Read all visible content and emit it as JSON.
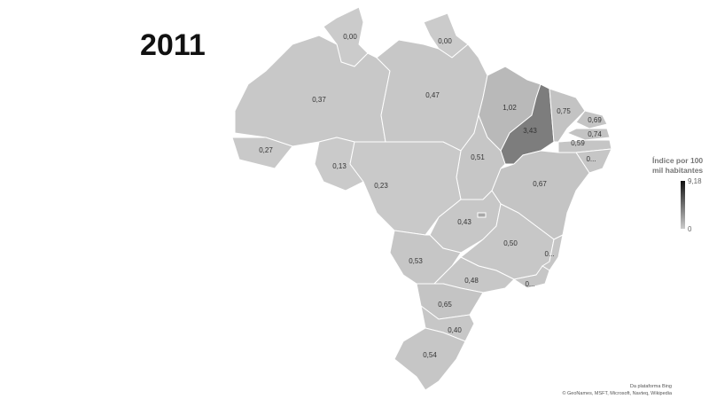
{
  "title": "2011",
  "colors": {
    "base": "#c9c9c9",
    "max": "#111111",
    "min": "#cccccc"
  },
  "legend": {
    "title_line1": "Índice por 100",
    "title_line2": "mil habitantes",
    "max": "9,18",
    "min": "0"
  },
  "states": [
    {
      "id": "RR",
      "label": "0,00",
      "fill": "#cbcbcb"
    },
    {
      "id": "AP",
      "label": "0,00",
      "fill": "#cbcbcb"
    },
    {
      "id": "AM",
      "label": "0,37",
      "fill": "#c8c8c8"
    },
    {
      "id": "PA",
      "label": "0,47",
      "fill": "#c7c7c7"
    },
    {
      "id": "MA",
      "label": "1,02",
      "fill": "#b9b9b9"
    },
    {
      "id": "PI",
      "label": "3,43",
      "fill": "#7d7d7d"
    },
    {
      "id": "CE",
      "label": "0,75",
      "fill": "#c3c3c3"
    },
    {
      "id": "RN",
      "label": "0,69",
      "fill": "#c4c4c4"
    },
    {
      "id": "PB",
      "label": "0,74",
      "fill": "#c3c3c3"
    },
    {
      "id": "PE",
      "label": "0,59",
      "fill": "#c5c5c5"
    },
    {
      "id": "AL",
      "label": "0...",
      "fill": "#c6c6c6"
    },
    {
      "id": "BA",
      "label": "0,67",
      "fill": "#c4c4c4"
    },
    {
      "id": "TO",
      "label": "0,51",
      "fill": "#c6c6c6"
    },
    {
      "id": "AC",
      "label": "0,27",
      "fill": "#c9c9c9"
    },
    {
      "id": "RO",
      "label": "0,13",
      "fill": "#cacaca"
    },
    {
      "id": "MT",
      "label": "0,23",
      "fill": "#c9c9c9"
    },
    {
      "id": "GO",
      "label": "0,43",
      "fill": "#c7c7c7"
    },
    {
      "id": "MG",
      "label": "0,50",
      "fill": "#c7c7c7"
    },
    {
      "id": "ES",
      "label": "0...",
      "fill": "#c6c6c6"
    },
    {
      "id": "RJ",
      "label": "0...",
      "fill": "#c6c6c6"
    },
    {
      "id": "MS",
      "label": "0,53",
      "fill": "#c6c6c6"
    },
    {
      "id": "SP",
      "label": "0,48",
      "fill": "#c7c7c7"
    },
    {
      "id": "PR",
      "label": "0,65",
      "fill": "#c4c4c4"
    },
    {
      "id": "SC",
      "label": "0,40",
      "fill": "#c7c7c7"
    },
    {
      "id": "RS",
      "label": "0,54",
      "fill": "#c6c6c6"
    },
    {
      "id": "DF",
      "label": "",
      "fill": "#a8a8a8"
    }
  ],
  "credits": {
    "line1": "Da plataforma Bing",
    "line2": "© GeoNames, MSFT, Microsoft, Navteq, Wikipedia"
  }
}
